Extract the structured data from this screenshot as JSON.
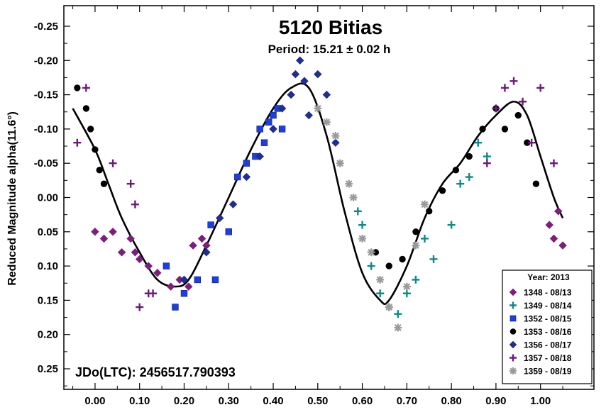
{
  "chart_data": {
    "type": "scatter",
    "title": "5120 Bitias",
    "subtitle": "Period: 15.21 ± 0.02 h",
    "ylabel": "Reduced Magnitude alpha(11.6°)",
    "xlabel": "",
    "annotation": "JDo(LTC): 2456517.790393",
    "xlim": [
      -0.07,
      1.12
    ],
    "ylim": [
      -0.28,
      0.28
    ],
    "y_inverted": true,
    "grid": false,
    "x_ticks": [
      "0.00",
      "0.10",
      "0.20",
      "0.30",
      "0.40",
      "0.50",
      "0.60",
      "0.70",
      "0.80",
      "0.90",
      "1.00"
    ],
    "y_ticks": [
      "-0.25",
      "-0.20",
      "-0.15",
      "-0.10",
      "-0.05",
      "0.00",
      "0.05",
      "0.10",
      "0.15",
      "0.20",
      "0.25"
    ],
    "legend": {
      "title": "Year: 2013",
      "placement": "bottom-right"
    },
    "fit_curve": {
      "x": [
        -0.05,
        0.0,
        0.03,
        0.06,
        0.1,
        0.14,
        0.18,
        0.21,
        0.25,
        0.3,
        0.35,
        0.4,
        0.44,
        0.48,
        0.52,
        0.56,
        0.6,
        0.64,
        0.66,
        0.7,
        0.74,
        0.78,
        0.82,
        0.86,
        0.9,
        0.94,
        0.97,
        1.0,
        1.03,
        1.05
      ],
      "y": [
        -0.13,
        -0.07,
        -0.02,
        0.03,
        0.08,
        0.12,
        0.13,
        0.12,
        0.07,
        0.0,
        -0.07,
        -0.13,
        -0.16,
        -0.16,
        -0.09,
        0.02,
        0.11,
        0.15,
        0.15,
        0.1,
        0.03,
        -0.02,
        -0.05,
        -0.09,
        -0.12,
        -0.14,
        -0.12,
        -0.06,
        0.0,
        0.03
      ]
    },
    "series": [
      {
        "name": "1348 - 08/13",
        "color": "#7B1F7B",
        "marker": "diamond",
        "x": [
          0.0,
          0.02,
          0.04,
          0.06,
          0.08,
          0.09,
          0.1,
          0.12,
          0.14,
          0.17,
          0.19,
          0.21,
          0.22,
          0.24,
          0.25,
          1.02,
          1.03,
          1.04,
          1.05
        ],
        "y": [
          0.05,
          0.06,
          0.05,
          0.08,
          0.06,
          0.08,
          0.09,
          0.1,
          0.11,
          0.13,
          0.12,
          0.13,
          0.07,
          0.06,
          0.07,
          0.04,
          0.06,
          0.02,
          0.07
        ]
      },
      {
        "name": "1349 - 08/14",
        "color": "#0B8A87",
        "marker": "plus",
        "x": [
          0.59,
          0.6,
          0.62,
          0.64,
          0.66,
          0.68,
          0.7,
          0.72,
          0.74,
          0.76,
          0.8,
          0.82,
          0.84,
          0.86,
          0.88
        ],
        "y": [
          0.02,
          0.04,
          0.1,
          0.14,
          0.16,
          0.17,
          0.14,
          0.12,
          0.06,
          0.09,
          0.04,
          -0.02,
          -0.03,
          -0.08,
          -0.06
        ]
      },
      {
        "name": "1352 - 08/15",
        "color": "#1E3FE0",
        "marker": "square",
        "x": [
          0.16,
          0.18,
          0.2,
          0.23,
          0.26,
          0.27,
          0.3,
          0.32,
          0.34,
          0.36,
          0.37,
          0.38,
          0.39,
          0.4,
          0.41,
          0.42
        ],
        "y": [
          0.1,
          0.16,
          0.14,
          0.12,
          0.04,
          0.12,
          0.05,
          -0.03,
          -0.05,
          -0.06,
          -0.1,
          -0.08,
          -0.11,
          -0.12,
          -0.13,
          -0.1
        ]
      },
      {
        "name": "1353 - 08/16",
        "color": "#000000",
        "marker": "circle",
        "x": [
          -0.04,
          -0.02,
          -0.01,
          0.0,
          0.01,
          0.02,
          0.63,
          0.66,
          0.69,
          0.72,
          0.75,
          0.78,
          0.81,
          0.84,
          0.87,
          0.9,
          0.92,
          0.95,
          0.97,
          0.99
        ],
        "y": [
          -0.16,
          -0.13,
          -0.1,
          -0.07,
          -0.04,
          -0.02,
          0.08,
          0.1,
          0.09,
          0.05,
          0.02,
          -0.01,
          -0.04,
          -0.06,
          -0.1,
          -0.13,
          -0.1,
          -0.12,
          -0.08,
          -0.02
        ]
      },
      {
        "name": "1356 - 08/17",
        "color": "#1F2E8F",
        "marker": "diamond",
        "x": [
          0.2,
          0.25,
          0.28,
          0.31,
          0.34,
          0.37,
          0.4,
          0.42,
          0.44,
          0.45,
          0.46,
          0.47,
          0.48,
          0.5,
          0.52,
          0.54
        ],
        "y": [
          0.12,
          0.08,
          0.03,
          0.01,
          -0.03,
          -0.06,
          -0.1,
          -0.13,
          -0.15,
          -0.18,
          -0.2,
          -0.17,
          -0.12,
          -0.18,
          -0.15,
          -0.08
        ]
      },
      {
        "name": "1357 - 08/18",
        "color": "#6B1A7A",
        "marker": "plus",
        "x": [
          -0.04,
          -0.02,
          0.04,
          0.08,
          0.09,
          0.1,
          0.12,
          0.13,
          0.88,
          0.9,
          0.92,
          0.94,
          0.96,
          0.98,
          1.0,
          1.03
        ],
        "y": [
          -0.08,
          -0.16,
          -0.05,
          -0.02,
          0.01,
          0.16,
          0.14,
          0.14,
          -0.05,
          -0.13,
          -0.16,
          -0.17,
          -0.14,
          -0.08,
          -0.16,
          -0.05
        ]
      },
      {
        "name": "1359 - 08/19",
        "color": "#9A9A9A",
        "marker": "asterisk",
        "x": [
          0.5,
          0.52,
          0.54,
          0.55,
          0.57,
          0.58,
          0.6,
          0.62,
          0.64,
          0.66,
          0.68,
          0.7,
          0.72,
          0.74
        ],
        "y": [
          -0.13,
          -0.11,
          -0.09,
          -0.05,
          -0.02,
          0.0,
          0.06,
          0.08,
          0.12,
          0.16,
          0.19,
          0.13,
          0.07,
          0.01
        ]
      }
    ]
  }
}
